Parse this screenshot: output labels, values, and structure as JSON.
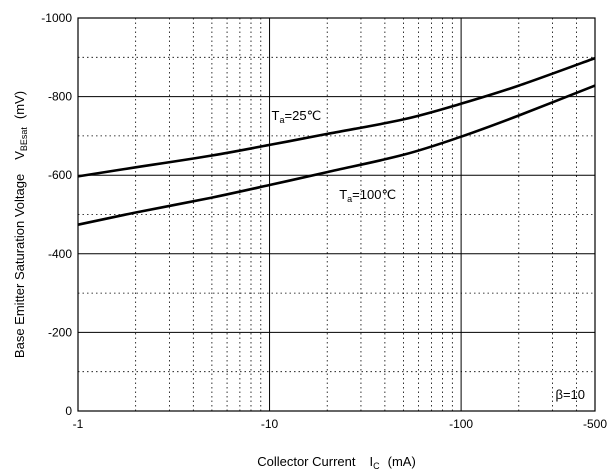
{
  "chart_data": {
    "type": "line",
    "x_scale": "log",
    "y_scale": "linear",
    "xlim": [
      -1,
      -500
    ],
    "ylim": [
      0,
      -1000
    ],
    "x_ticks": [
      "-1",
      "-10",
      "-100",
      "-500"
    ],
    "y_ticks": [
      "0",
      "-200",
      "-400",
      "-600",
      "-800",
      "-1000"
    ],
    "grid": "major solid, minor dotted",
    "xlabel": {
      "main": "Collector Current",
      "symbol": "I",
      "sub": "C",
      "unit": "(mA)"
    },
    "ylabel": {
      "main": "Base Emitter Saturation Voltage",
      "symbol": "V",
      "sub": "BEsat",
      "unit": "(mV)"
    },
    "annotation": "β=10",
    "series": [
      {
        "label_main": "T",
        "label_sub": "a",
        "label_rest": "=25℃",
        "x": [
          -1,
          -2,
          -5,
          -10,
          -20,
          -50,
          -100,
          -200,
          -500
        ],
        "y": [
          -597,
          -620,
          -650,
          -677,
          -705,
          -742,
          -782,
          -828,
          -898
        ]
      },
      {
        "label_main": "T",
        "label_sub": "a",
        "label_rest": "=100℃",
        "x": [
          -1,
          -2,
          -5,
          -10,
          -20,
          -50,
          -100,
          -200,
          -500
        ],
        "y": [
          -474,
          -505,
          -543,
          -575,
          -608,
          -652,
          -698,
          -752,
          -828
        ]
      }
    ]
  }
}
